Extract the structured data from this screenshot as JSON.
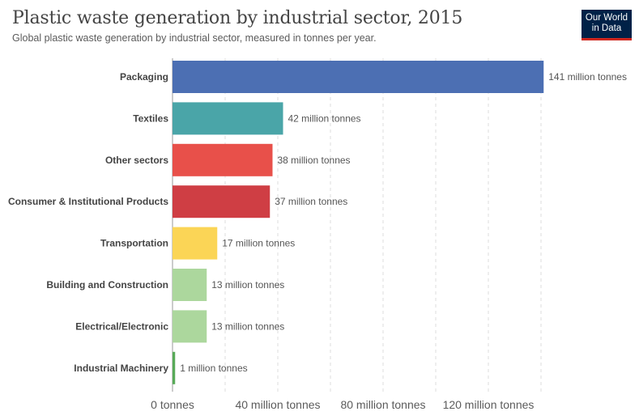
{
  "header": {
    "title": "Plastic waste generation by industrial sector, 2015",
    "subtitle": "Global plastic waste generation by industrial sector, measured in tonnes per year."
  },
  "logo": {
    "line1": "Our World",
    "line2": "in Data"
  },
  "chart_data": {
    "type": "bar",
    "orientation": "horizontal",
    "title": "Plastic waste generation by industrial sector, 2015",
    "subtitle": "Global plastic waste generation by industrial sector, measured in tonnes per year.",
    "categories": [
      "Packaging",
      "Textiles",
      "Other sectors",
      "Consumer & Institutional Products",
      "Transportation",
      "Building and Construction",
      "Electrical/Electronic",
      "Industrial Machinery"
    ],
    "values": [
      141,
      42,
      38,
      37,
      17,
      13,
      13,
      1
    ],
    "value_labels": [
      "141 million tonnes",
      "42 million tonnes",
      "38 million tonnes",
      "37 million tonnes",
      "17 million tonnes",
      "13 million tonnes",
      "13 million tonnes",
      "1 million tonnes"
    ],
    "colors": [
      "#4c6fb3",
      "#4aa5a8",
      "#e8504a",
      "#cf3e44",
      "#fbd556",
      "#acd79d",
      "#acd79d",
      "#58aa58"
    ],
    "unit": "million tonnes",
    "xlim": [
      0,
      140
    ],
    "xticks": [
      0,
      40,
      80,
      120
    ],
    "xtick_labels": [
      "0 tonnes",
      "40 million tonnes",
      "80 million tonnes",
      "120 million tonnes"
    ],
    "grid": true,
    "legend": "none"
  }
}
